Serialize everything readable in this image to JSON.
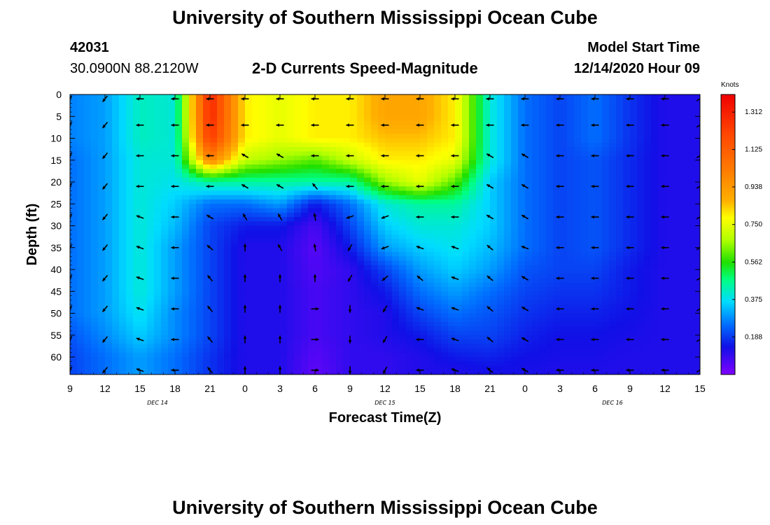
{
  "page": {
    "title_top": "University of Southern Mississippi Ocean Cube",
    "title_bottom": "University of Southern Mississippi Ocean Cube",
    "station_id": "42031",
    "station_coords": "30.0900N 88.2120W",
    "plot_title": "2-D Currents Speed-Magnitude",
    "model_start_label": "Model Start Time",
    "model_start_value": "12/14/2020 Hour 09"
  },
  "chart_data": {
    "type": "heatmap",
    "xlabel": "Forecast Time(Z)",
    "ylabel": "Depth (ft)",
    "x_ticks": [
      "9",
      "12",
      "15",
      "18",
      "21",
      "0",
      "3",
      "6",
      "9",
      "12",
      "15",
      "18",
      "21",
      "0",
      "3",
      "6",
      "9",
      "12",
      "15"
    ],
    "x_tick_hours": [
      0,
      3,
      6,
      9,
      12,
      15,
      18,
      21,
      24,
      27,
      30,
      33,
      36,
      39,
      42,
      45,
      48,
      51,
      54
    ],
    "date_labels": [
      {
        "text": "DEC 14",
        "hour": 7.5
      },
      {
        "text": "DEC 15",
        "hour": 27
      },
      {
        "text": "DEC 16",
        "hour": 46.5
      }
    ],
    "y_ticks": [
      0,
      5,
      10,
      15,
      20,
      25,
      30,
      35,
      40,
      45,
      50,
      55,
      60
    ],
    "ylim": [
      0,
      64
    ],
    "xlim_hours": [
      0,
      54
    ],
    "colorbar": {
      "unit": "Knots",
      "ticks": [
        "1.312",
        "1.125",
        "0.938",
        "0.750",
        "0.562",
        "0.375",
        "0.188"
      ],
      "tick_values": [
        1.312,
        1.125,
        0.938,
        0.75,
        0.562,
        0.375,
        0.188
      ],
      "range": [
        0,
        1.4
      ]
    },
    "speed_field_knots": {
      "depths_ft": [
        0,
        5,
        10,
        15,
        20,
        25,
        30,
        35,
        40,
        45,
        50,
        55,
        60,
        64
      ],
      "hours": [
        0,
        3,
        6,
        9,
        12,
        15,
        18,
        21,
        24,
        27,
        30,
        33,
        36,
        39,
        42,
        45,
        48,
        51,
        54
      ],
      "values": [
        [
          0.27,
          0.3,
          0.42,
          0.4,
          1.3,
          0.8,
          0.75,
          0.8,
          0.8,
          0.9,
          0.9,
          0.8,
          0.4,
          0.25,
          0.2,
          0.25,
          0.18,
          0.12,
          0.12
        ],
        [
          0.27,
          0.3,
          0.42,
          0.4,
          1.3,
          0.8,
          0.75,
          0.8,
          0.8,
          0.9,
          0.9,
          0.8,
          0.4,
          0.25,
          0.2,
          0.25,
          0.18,
          0.12,
          0.12
        ],
        [
          0.27,
          0.3,
          0.42,
          0.4,
          1.25,
          0.8,
          0.75,
          0.8,
          0.8,
          0.85,
          0.85,
          0.8,
          0.4,
          0.25,
          0.2,
          0.25,
          0.18,
          0.12,
          0.12
        ],
        [
          0.25,
          0.3,
          0.4,
          0.4,
          1.0,
          0.7,
          0.65,
          0.6,
          0.7,
          0.8,
          0.8,
          0.75,
          0.4,
          0.25,
          0.2,
          0.22,
          0.17,
          0.12,
          0.12
        ],
        [
          0.25,
          0.3,
          0.4,
          0.38,
          0.45,
          0.45,
          0.45,
          0.45,
          0.45,
          0.65,
          0.75,
          0.6,
          0.35,
          0.25,
          0.2,
          0.22,
          0.17,
          0.12,
          0.12
        ],
        [
          0.25,
          0.3,
          0.4,
          0.35,
          0.25,
          0.25,
          0.3,
          0.15,
          0.25,
          0.4,
          0.45,
          0.45,
          0.35,
          0.25,
          0.2,
          0.22,
          0.17,
          0.12,
          0.12
        ],
        [
          0.25,
          0.3,
          0.4,
          0.33,
          0.2,
          0.15,
          0.15,
          0.07,
          0.2,
          0.35,
          0.4,
          0.4,
          0.35,
          0.25,
          0.2,
          0.22,
          0.17,
          0.12,
          0.12
        ],
        [
          0.25,
          0.3,
          0.4,
          0.3,
          0.2,
          0.12,
          0.12,
          0.05,
          0.15,
          0.3,
          0.35,
          0.38,
          0.33,
          0.25,
          0.2,
          0.22,
          0.17,
          0.12,
          0.12
        ],
        [
          0.25,
          0.3,
          0.4,
          0.3,
          0.2,
          0.12,
          0.12,
          0.06,
          0.1,
          0.2,
          0.3,
          0.35,
          0.3,
          0.22,
          0.2,
          0.2,
          0.15,
          0.12,
          0.12
        ],
        [
          0.25,
          0.3,
          0.4,
          0.3,
          0.2,
          0.12,
          0.12,
          0.07,
          0.1,
          0.15,
          0.25,
          0.3,
          0.25,
          0.2,
          0.18,
          0.18,
          0.15,
          0.12,
          0.12
        ],
        [
          0.25,
          0.3,
          0.38,
          0.28,
          0.2,
          0.12,
          0.12,
          0.07,
          0.1,
          0.12,
          0.2,
          0.25,
          0.22,
          0.18,
          0.16,
          0.16,
          0.14,
          0.12,
          0.12
        ],
        [
          0.22,
          0.28,
          0.35,
          0.28,
          0.2,
          0.12,
          0.12,
          0.07,
          0.1,
          0.12,
          0.15,
          0.2,
          0.2,
          0.16,
          0.14,
          0.14,
          0.13,
          0.12,
          0.12
        ],
        [
          0.2,
          0.25,
          0.3,
          0.25,
          0.18,
          0.12,
          0.12,
          0.05,
          0.1,
          0.1,
          0.12,
          0.15,
          0.16,
          0.14,
          0.13,
          0.13,
          0.12,
          0.12,
          0.12
        ],
        [
          0.2,
          0.25,
          0.3,
          0.25,
          0.18,
          0.12,
          0.12,
          0.04,
          0.1,
          0.1,
          0.12,
          0.12,
          0.13,
          0.13,
          0.12,
          0.12,
          0.12,
          0.12,
          0.12
        ]
      ]
    },
    "vector_field": {
      "depths_ft": [
        1,
        7,
        14,
        21,
        28,
        35,
        42,
        49,
        56,
        63
      ],
      "hours": [
        0,
        3,
        6,
        9,
        12,
        15,
        18,
        21,
        24,
        27,
        30,
        33,
        36,
        39,
        42,
        45,
        48,
        51,
        54
      ],
      "dir_deg": [
        [
          240,
          230,
          180,
          180,
          180,
          180,
          180,
          180,
          180,
          180,
          180,
          180,
          180,
          180,
          180,
          180,
          180,
          180,
          30
        ],
        [
          240,
          230,
          180,
          180,
          180,
          180,
          180,
          180,
          180,
          180,
          180,
          180,
          180,
          180,
          180,
          180,
          180,
          180,
          30
        ],
        [
          240,
          230,
          180,
          180,
          180,
          150,
          150,
          180,
          180,
          180,
          180,
          180,
          150,
          150,
          180,
          180,
          180,
          180,
          30
        ],
        [
          240,
          230,
          180,
          180,
          180,
          150,
          150,
          130,
          180,
          180,
          180,
          180,
          150,
          150,
          180,
          180,
          180,
          180,
          30
        ],
        [
          240,
          230,
          160,
          180,
          150,
          120,
          120,
          100,
          200,
          200,
          180,
          180,
          150,
          150,
          180,
          180,
          180,
          180,
          30
        ],
        [
          240,
          230,
          160,
          180,
          140,
          90,
          120,
          100,
          240,
          200,
          160,
          160,
          140,
          160,
          180,
          180,
          180,
          180,
          30
        ],
        [
          240,
          230,
          160,
          180,
          130,
          90,
          90,
          90,
          240,
          220,
          140,
          160,
          140,
          150,
          180,
          180,
          180,
          180,
          30
        ],
        [
          240,
          230,
          160,
          180,
          130,
          90,
          90,
          0,
          270,
          240,
          160,
          160,
          140,
          150,
          180,
          180,
          180,
          180,
          30
        ],
        [
          240,
          230,
          160,
          180,
          130,
          90,
          90,
          0,
          270,
          240,
          180,
          160,
          140,
          150,
          180,
          180,
          180,
          180,
          30
        ],
        [
          240,
          230,
          160,
          180,
          130,
          90,
          90,
          0,
          270,
          240,
          180,
          160,
          140,
          150,
          180,
          180,
          180,
          180,
          30
        ]
      ]
    }
  }
}
